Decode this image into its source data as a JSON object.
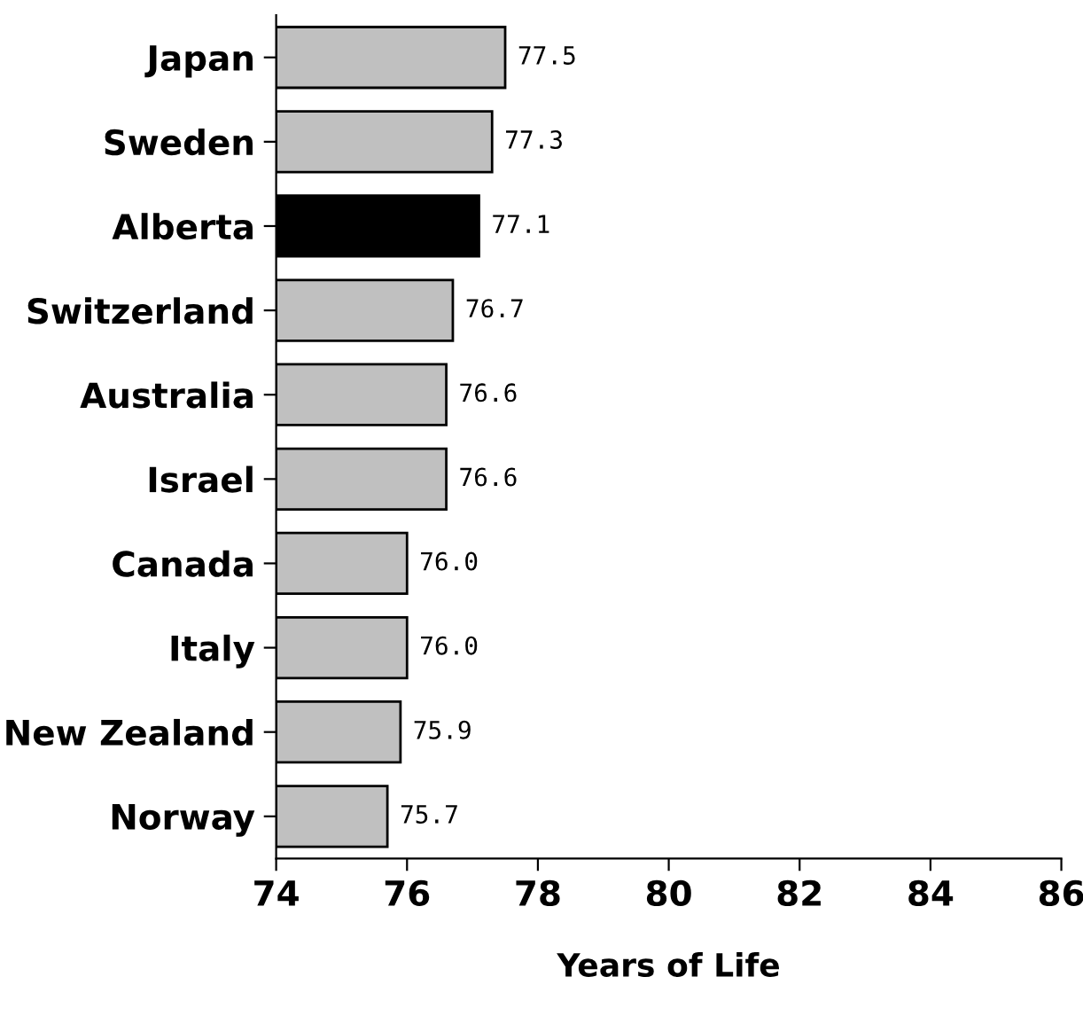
{
  "chart_data": {
    "type": "bar",
    "orientation": "horizontal",
    "xlabel": "Years of Life",
    "categories": [
      "Japan",
      "Sweden",
      "Alberta",
      "Switzerland",
      "Australia",
      "Israel",
      "Canada",
      "Italy",
      "New Zealand",
      "Norway"
    ],
    "values": [
      77.5,
      77.3,
      77.1,
      76.7,
      76.6,
      76.6,
      76.0,
      76.0,
      75.9,
      75.7
    ],
    "colors": [
      "#c0c0c0",
      "#c0c0c0",
      "#000000",
      "#c0c0c0",
      "#c0c0c0",
      "#c0c0c0",
      "#c0c0c0",
      "#c0c0c0",
      "#c0c0c0",
      "#c0c0c0"
    ],
    "value_labels": [
      "77.5",
      "77.3",
      "77.1",
      "76.7",
      "76.6",
      "76.6",
      "76.0",
      "76.0",
      "75.9",
      "75.7"
    ],
    "xlim": [
      74,
      86
    ],
    "xticks": [
      74,
      76,
      78,
      80,
      82,
      84,
      86
    ],
    "grid": false,
    "legend": false
  }
}
